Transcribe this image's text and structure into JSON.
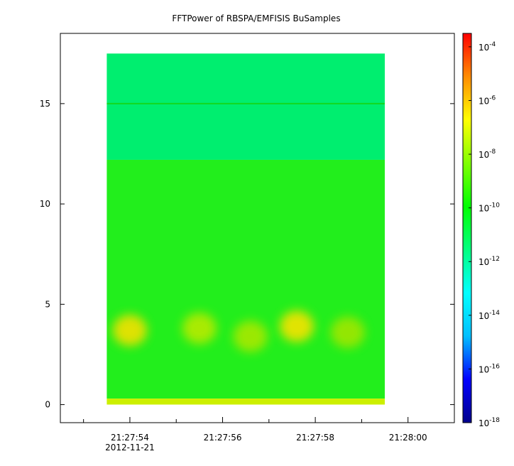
{
  "chart_data": {
    "type": "heatmap",
    "title": "FFTPower of RBSPA/EMFISIS  BuSamples",
    "xlabel": "",
    "ylabel": "",
    "x_ticks": [
      {
        "label": "21:27:54",
        "sublabel": "2012-11-21",
        "t": 54
      },
      {
        "label": "21:27:56",
        "sublabel": "",
        "t": 56
      },
      {
        "label": "21:27:58",
        "sublabel": "",
        "t": 58
      },
      {
        "label": "21:28:00",
        "sublabel": "",
        "t": 60
      }
    ],
    "x_minor_ticks": [
      53,
      55,
      57,
      59
    ],
    "xlim": [
      52.5,
      61
    ],
    "data_xrange": [
      53.5,
      59.5
    ],
    "ylim": [
      -0.9,
      18.5
    ],
    "data_yrange": [
      0,
      17.5
    ],
    "y_ticks": [
      {
        "label": "0",
        "v": 0
      },
      {
        "label": "5",
        "v": 5
      },
      {
        "label": "10",
        "v": 10
      },
      {
        "label": "15",
        "v": 15
      }
    ],
    "colorbar": {
      "scale": "log",
      "range": [
        -18,
        -3.5
      ],
      "ticks": [
        {
          "base": "10",
          "exp": "-4",
          "v": -4
        },
        {
          "base": "10",
          "exp": "-6",
          "v": -6
        },
        {
          "base": "10",
          "exp": "-8",
          "v": -8
        },
        {
          "base": "10",
          "exp": "-10",
          "v": -10
        },
        {
          "base": "10",
          "exp": "-12",
          "v": -12
        },
        {
          "base": "10",
          "exp": "-14",
          "v": -14
        },
        {
          "base": "10",
          "exp": "-16",
          "v": -16
        },
        {
          "base": "10",
          "exp": "-18",
          "v": -18
        }
      ],
      "colormap": [
        "#00008b",
        "#0000ff",
        "#00bfff",
        "#00ffff",
        "#00ff80",
        "#00ff00",
        "#80ff00",
        "#ffff00",
        "#ff8c00",
        "#ff0000"
      ]
    },
    "bands": [
      {
        "y_from": 12.2,
        "y_to": 17.5,
        "log_power": -12.6,
        "color": "#00ee6f"
      },
      {
        "y_from": 0.3,
        "y_to": 12.2,
        "log_power": -10.2,
        "color": "#22ee1c"
      },
      {
        "y_from": 0,
        "y_to": 0.3,
        "log_power": -8.8,
        "color": "#ccef00"
      }
    ],
    "line_features": [
      {
        "y": 15.0,
        "log_power": -10.8,
        "color": "#13d81e"
      }
    ],
    "hotspots": [
      {
        "t": 54.0,
        "f": 3.7,
        "log_power": -8.3,
        "color": "#f3e000"
      },
      {
        "t": 55.5,
        "f": 3.8,
        "log_power": -9.0,
        "color": "#b8ea00"
      },
      {
        "t": 56.6,
        "f": 3.4,
        "log_power": -9.2,
        "color": "#a8e800"
      },
      {
        "t": 57.6,
        "f": 3.9,
        "log_power": -8.2,
        "color": "#f6e200"
      },
      {
        "t": 58.7,
        "f": 3.6,
        "log_power": -9.3,
        "color": "#a0e600"
      }
    ]
  }
}
